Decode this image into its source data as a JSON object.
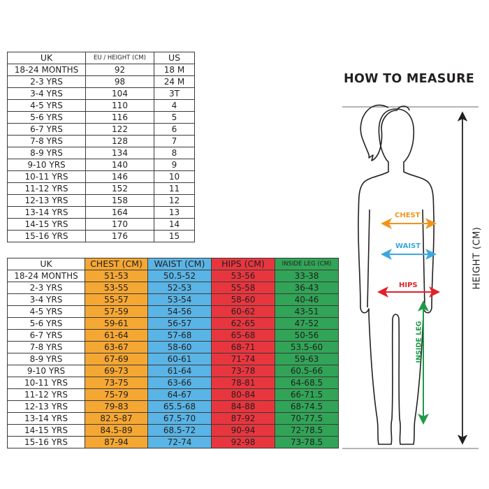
{
  "size_table": {
    "headers": [
      "UK",
      "EU / HEIGHT (CM)",
      "US"
    ],
    "rows": [
      [
        "18-24 MONTHS",
        "92",
        "18 M"
      ],
      [
        "2-3 YRS",
        "98",
        "24 M"
      ],
      [
        "3-4 YRS",
        "104",
        "3T"
      ],
      [
        "4-5 YRS",
        "110",
        "4"
      ],
      [
        "5-6 YRS",
        "116",
        "5"
      ],
      [
        "6-7 YRS",
        "122",
        "6"
      ],
      [
        "7-8 YRS",
        "128",
        "7"
      ],
      [
        "8-9 YRS",
        "134",
        "8"
      ],
      [
        "9-10 YRS",
        "140",
        "9"
      ],
      [
        "10-11 YRS",
        "146",
        "10"
      ],
      [
        "11-12 YRS",
        "152",
        "11"
      ],
      [
        "12-13 YRS",
        "158",
        "12"
      ],
      [
        "13-14 YRS",
        "164",
        "13"
      ],
      [
        "14-15 YRS",
        "170",
        "14"
      ],
      [
        "15-16 YRS",
        "176",
        "15"
      ]
    ]
  },
  "measure_table": {
    "headers": [
      "UK",
      "CHEST (CM)",
      "WAIST (CM)",
      "HIPS (CM)",
      "INSIDE LEG (CM)"
    ],
    "column_colors": [
      "#ffffff",
      "#f5a733",
      "#5ab4e5",
      "#e8363f",
      "#31a457"
    ],
    "rows": [
      [
        "18-24 MONTHS",
        "51-53",
        "50.5-52",
        "53-56",
        "33-38"
      ],
      [
        "2-3 YRS",
        "53-55",
        "52-53",
        "55-58",
        "36-43"
      ],
      [
        "3-4 YRS",
        "55-57",
        "53-54",
        "58-60",
        "40-46"
      ],
      [
        "4-5 YRS",
        "57-59",
        "54-56",
        "60-62",
        "43-51"
      ],
      [
        "5-6 YRS",
        "59-61",
        "56-57",
        "62-65",
        "47-52"
      ],
      [
        "6-7 YRS",
        "61-64",
        "57-68",
        "65-68",
        "50-56"
      ],
      [
        "7-8 YRS",
        "63-67",
        "58-60",
        "68-71",
        "53.5-60"
      ],
      [
        "8-9 YRS",
        "67-69",
        "60-61",
        "71-74",
        "59-63"
      ],
      [
        "9-10 YRS",
        "69-73",
        "61-64",
        "73-78",
        "60.5-66"
      ],
      [
        "10-11 YRS",
        "73-75",
        "63-66",
        "78-81",
        "64-68.5"
      ],
      [
        "11-12 YRS",
        "75-79",
        "64-67",
        "80-84",
        "66-71.5"
      ],
      [
        "12-13 YRS",
        "79-83",
        "65.5-68",
        "84-88",
        "68-74.5"
      ],
      [
        "13-14 YRS",
        "82.5-87",
        "67.5-70",
        "87-92",
        "70-77.5"
      ],
      [
        "14-15 YRS",
        "84.5-89",
        "68.5-72",
        "90-94",
        "72-78.5"
      ],
      [
        "15-16 YRS",
        "87-94",
        "72-74",
        "92-98",
        "73-78.5"
      ]
    ]
  },
  "diagram": {
    "title": "HOW TO MEASURE",
    "chest_label": "CHEST",
    "waist_label": "WAIST",
    "hips_label": "HIPS",
    "inside_leg_label": "INSIDE LEG",
    "height_label": "HEIGHT (CM)",
    "colors": {
      "chest": "#f0951c",
      "waist": "#3aa7df",
      "hips": "#e3202a",
      "inside_leg": "#1e9a48",
      "height": "#231f20"
    }
  }
}
